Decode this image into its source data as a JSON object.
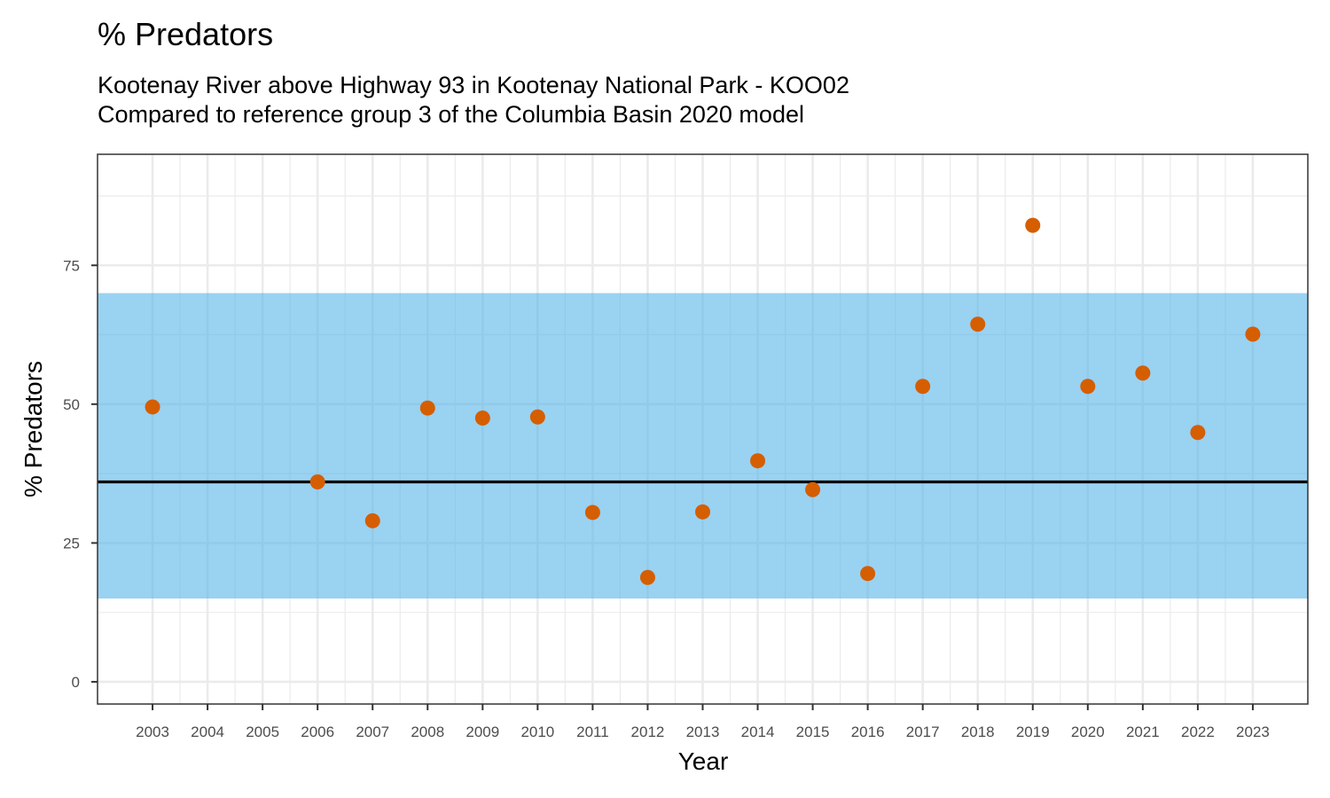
{
  "chart_data": {
    "type": "scatter",
    "title": "% Predators",
    "subtitle_lines": [
      "Kootenay River above Highway 93 in Kootenay National Park - KOO02",
      "Compared to reference group 3 of the Columbia Basin 2020 model"
    ],
    "xlabel": "Year",
    "ylabel": "% Predators",
    "x_ticks": [
      2003,
      2004,
      2005,
      2006,
      2007,
      2008,
      2009,
      2010,
      2011,
      2012,
      2013,
      2014,
      2015,
      2016,
      2017,
      2018,
      2019,
      2020,
      2021,
      2022,
      2023
    ],
    "y_ticks": [
      0,
      25,
      50,
      75
    ],
    "xlim": [
      2002,
      2024
    ],
    "ylim": [
      -4,
      95
    ],
    "grid": true,
    "reference_band": {
      "lower": 15,
      "upper": 70,
      "color": "#56B4E9"
    },
    "reference_line": {
      "value": 36,
      "color": "#000000"
    },
    "point_color": "#D55E00",
    "points": [
      {
        "x": 2003,
        "y": 49.5
      },
      {
        "x": 2006,
        "y": 36
      },
      {
        "x": 2007,
        "y": 29
      },
      {
        "x": 2008,
        "y": 49.3
      },
      {
        "x": 2009,
        "y": 47.5
      },
      {
        "x": 2010,
        "y": 47.7
      },
      {
        "x": 2011,
        "y": 30.5
      },
      {
        "x": 2012,
        "y": 18.8
      },
      {
        "x": 2013,
        "y": 30.6
      },
      {
        "x": 2014,
        "y": 39.8
      },
      {
        "x": 2015,
        "y": 34.6
      },
      {
        "x": 2016,
        "y": 19.5
      },
      {
        "x": 2017,
        "y": 53.2
      },
      {
        "x": 2018,
        "y": 64.4
      },
      {
        "x": 2019,
        "y": 82.2
      },
      {
        "x": 2020,
        "y": 53.2
      },
      {
        "x": 2021,
        "y": 55.6
      },
      {
        "x": 2022,
        "y": 44.9
      },
      {
        "x": 2023,
        "y": 62.6
      }
    ]
  }
}
